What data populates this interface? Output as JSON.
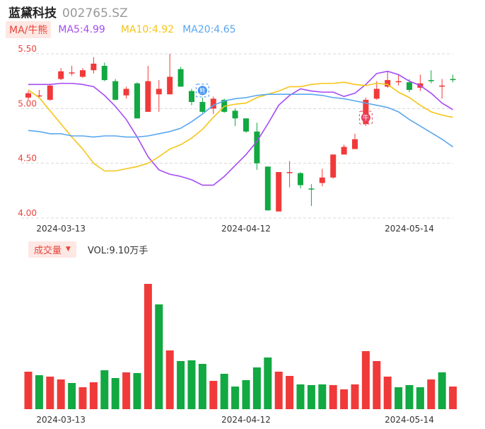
{
  "header": {
    "name": "蓝黛科技",
    "code": "002765.SZ"
  },
  "ma": {
    "mode_label": "MA/牛熊",
    "items": [
      {
        "label": "MA5:4.99",
        "color": "#a64bf4"
      },
      {
        "label": "MA10:4.92",
        "color": "#f5c518"
      },
      {
        "label": "MA20:4.65",
        "color": "#5aa7ee"
      }
    ]
  },
  "volume": {
    "mode_label": "成交量",
    "caret": "▼",
    "label": "VOL:9.10万手"
  },
  "colors": {
    "up": "#f03a3a",
    "down": "#12a842",
    "ma5": "#a64bf4",
    "ma10": "#f5c518",
    "ma20": "#5aa7ee",
    "grid": "#d8d8d8"
  },
  "markers": [
    {
      "text": "熊",
      "index": 16,
      "color": "#3a8ef0"
    },
    {
      "text": "牛",
      "index": 31,
      "color": "#e83f5b"
    }
  ],
  "chart_data": [
    {
      "type": "candlestick",
      "yticks": [
        "5.50",
        "5.00",
        "4.50",
        "4.00"
      ],
      "ylim": [
        4.0,
        5.5
      ],
      "x_ticks": [
        {
          "index": 3,
          "label": "2024-03-13"
        },
        {
          "index": 20,
          "label": "2024-04-12"
        },
        {
          "index": 35,
          "label": "2024-05-14"
        }
      ],
      "candles": [
        {
          "o": 5.1,
          "c": 5.14,
          "h": 5.16,
          "l": 5.08
        },
        {
          "o": 5.12,
          "c": 5.12,
          "h": 5.17,
          "l": 5.09
        },
        {
          "o": 5.08,
          "c": 5.21,
          "h": 5.22,
          "l": 5.07
        },
        {
          "o": 5.27,
          "c": 5.34,
          "h": 5.37,
          "l": 5.26
        },
        {
          "o": 5.33,
          "c": 5.33,
          "h": 5.39,
          "l": 5.3
        },
        {
          "o": 5.29,
          "c": 5.35,
          "h": 5.37,
          "l": 5.28
        },
        {
          "o": 5.35,
          "c": 5.41,
          "h": 5.47,
          "l": 5.32
        },
        {
          "o": 5.39,
          "c": 5.26,
          "h": 5.42,
          "l": 5.25
        },
        {
          "o": 5.25,
          "c": 5.08,
          "h": 5.27,
          "l": 5.08
        },
        {
          "o": 5.12,
          "c": 5.18,
          "h": 5.2,
          "l": 5.09
        },
        {
          "o": 5.23,
          "c": 4.91,
          "h": 5.24,
          "l": 4.91
        },
        {
          "o": 4.97,
          "c": 5.25,
          "h": 5.39,
          "l": 4.97
        },
        {
          "o": 5.13,
          "c": 5.18,
          "h": 5.26,
          "l": 4.97
        },
        {
          "o": 5.13,
          "c": 5.29,
          "h": 5.5,
          "l": 5.13
        },
        {
          "o": 5.36,
          "c": 5.2,
          "h": 5.38,
          "l": 5.2
        },
        {
          "o": 5.16,
          "c": 5.06,
          "h": 5.18,
          "l": 5.03
        },
        {
          "o": 5.06,
          "c": 4.97,
          "h": 5.1,
          "l": 4.96
        },
        {
          "o": 5.0,
          "c": 5.09,
          "h": 5.11,
          "l": 4.95
        },
        {
          "o": 5.08,
          "c": 4.97,
          "h": 5.09,
          "l": 4.96
        },
        {
          "o": 4.98,
          "c": 4.91,
          "h": 5.0,
          "l": 4.84
        },
        {
          "o": 4.91,
          "c": 4.79,
          "h": 4.91,
          "l": 4.78
        },
        {
          "o": 4.79,
          "c": 4.5,
          "h": 4.87,
          "l": 4.44
        },
        {
          "o": 4.47,
          "c": 4.07,
          "h": 4.47,
          "l": 4.07
        },
        {
          "o": 4.06,
          "c": 4.42,
          "h": 4.42,
          "l": 4.06
        },
        {
          "o": 4.41,
          "c": 4.42,
          "h": 4.52,
          "l": 4.28
        },
        {
          "o": 4.41,
          "c": 4.3,
          "h": 4.42,
          "l": 4.27
        },
        {
          "o": 4.27,
          "c": 4.26,
          "h": 4.31,
          "l": 4.11
        },
        {
          "o": 4.32,
          "c": 4.37,
          "h": 4.45,
          "l": 4.29
        },
        {
          "o": 4.37,
          "c": 4.58,
          "h": 4.58,
          "l": 4.36
        },
        {
          "o": 4.58,
          "c": 4.65,
          "h": 4.67,
          "l": 4.58
        },
        {
          "o": 4.63,
          "c": 4.72,
          "h": 4.77,
          "l": 4.63
        },
        {
          "o": 4.86,
          "c": 5.08,
          "h": 5.1,
          "l": 4.84
        },
        {
          "o": 5.09,
          "c": 5.18,
          "h": 5.25,
          "l": 5.08
        },
        {
          "o": 5.2,
          "c": 5.26,
          "h": 5.34,
          "l": 5.19
        },
        {
          "o": 5.25,
          "c": 5.25,
          "h": 5.31,
          "l": 5.21
        },
        {
          "o": 5.24,
          "c": 5.17,
          "h": 5.27,
          "l": 5.15
        },
        {
          "o": 5.19,
          "c": 5.23,
          "h": 5.31,
          "l": 5.16
        },
        {
          "o": 5.26,
          "c": 5.25,
          "h": 5.35,
          "l": 5.23
        },
        {
          "o": 5.2,
          "c": 5.21,
          "h": 5.27,
          "l": 5.09
        },
        {
          "o": 5.27,
          "c": 5.26,
          "h": 5.31,
          "l": 5.24
        }
      ],
      "ma_series": [
        {
          "name": "MA5",
          "values": [
            5.22,
            5.22,
            5.22,
            5.23,
            5.23,
            5.22,
            5.2,
            5.12,
            5.02,
            4.9,
            4.74,
            4.56,
            4.44,
            4.4,
            4.38,
            4.35,
            4.3,
            4.3,
            4.38,
            4.48,
            4.58,
            4.7,
            4.86,
            5.03,
            5.12,
            5.18,
            5.16,
            5.15,
            5.15,
            5.11,
            5.14,
            5.22,
            5.32,
            5.34,
            5.31,
            5.25,
            5.21,
            5.14,
            5.05,
            4.99
          ]
        },
        {
          "name": "MA10",
          "values": [
            5.17,
            5.1,
            4.98,
            4.86,
            4.74,
            4.63,
            4.5,
            4.43,
            4.43,
            4.45,
            4.47,
            4.5,
            4.56,
            4.63,
            4.67,
            4.73,
            4.81,
            4.92,
            5.02,
            5.04,
            5.05,
            5.1,
            5.13,
            5.16,
            5.2,
            5.2,
            5.22,
            5.23,
            5.23,
            5.24,
            5.22,
            5.21,
            5.23,
            5.22,
            5.15,
            5.1,
            5.03,
            4.97,
            4.94,
            4.92
          ]
        },
        {
          "name": "MA20",
          "values": [
            4.8,
            4.79,
            4.77,
            4.77,
            4.75,
            4.75,
            4.74,
            4.75,
            4.75,
            4.74,
            4.74,
            4.75,
            4.77,
            4.79,
            4.82,
            4.88,
            4.95,
            5.03,
            5.07,
            5.09,
            5.1,
            5.12,
            5.13,
            5.13,
            5.13,
            5.13,
            5.13,
            5.12,
            5.1,
            5.09,
            5.07,
            5.05,
            5.03,
            5.01,
            4.97,
            4.9,
            4.84,
            4.78,
            4.72,
            4.65
          ]
        }
      ]
    },
    {
      "type": "bar",
      "title": "成交量",
      "x_ticks": [
        "2024-03-13",
        "2024-04-12",
        "2024-05-14"
      ],
      "values": [
        53,
        48,
        46,
        42,
        37,
        31,
        38,
        55,
        44,
        52,
        51,
        177,
        148,
        83,
        68,
        69,
        64,
        40,
        50,
        32,
        41,
        59,
        73,
        53,
        47,
        35,
        34,
        35,
        34,
        28,
        35,
        82,
        68,
        46,
        31,
        34,
        31,
        42,
        52,
        32
      ],
      "colors": [
        "up",
        "down",
        "up",
        "up",
        "down",
        "up",
        "up",
        "down",
        "down",
        "up",
        "down",
        "up",
        "down",
        "up",
        "down",
        "down",
        "down",
        "up",
        "down",
        "down",
        "down",
        "down",
        "down",
        "up",
        "up",
        "down",
        "down",
        "down",
        "up",
        "up",
        "up",
        "up",
        "up",
        "up",
        "down",
        "down",
        "down",
        "up",
        "down",
        "up"
      ]
    }
  ]
}
